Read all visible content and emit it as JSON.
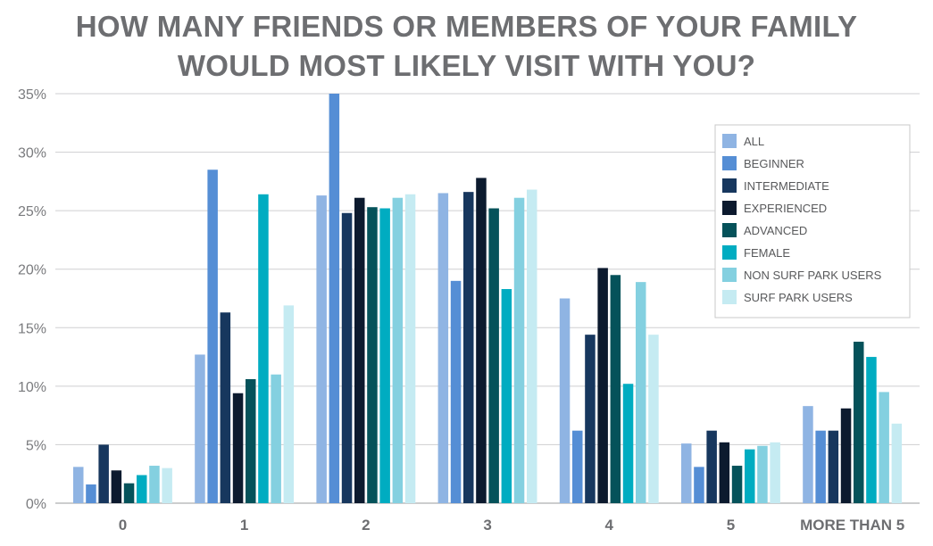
{
  "chart_data": {
    "type": "bar",
    "title": "HOW MANY FRIENDS OR MEMBERS OF YOUR FAMILY WOULD MOST LIKELY VISIT WITH YOU?",
    "title_lines": [
      "HOW MANY FRIENDS OR MEMBERS OF YOUR FAMILY",
      "WOULD MOST LIKELY VISIT WITH YOU?"
    ],
    "categories": [
      "0",
      "1",
      "2",
      "3",
      "4",
      "5",
      "MORE THAN 5"
    ],
    "ylim": [
      0,
      35
    ],
    "yticks": [
      0,
      5,
      10,
      15,
      20,
      25,
      30,
      35
    ],
    "ytick_labels": [
      "0%",
      "5%",
      "10%",
      "15%",
      "20%",
      "25%",
      "30%",
      "35%"
    ],
    "grid": true,
    "legend_position": "top-right",
    "series": [
      {
        "name": "ALL",
        "color": "#8fb4e3",
        "values": [
          3.1,
          12.7,
          26.3,
          26.5,
          17.5,
          5.1,
          8.3
        ]
      },
      {
        "name": "BEGINNER",
        "color": "#558ed5",
        "values": [
          1.6,
          28.5,
          35.0,
          19.0,
          6.2,
          3.1,
          6.2
        ]
      },
      {
        "name": "INTERMEDIATE",
        "color": "#17375e",
        "values": [
          5.0,
          16.3,
          24.8,
          26.6,
          14.4,
          6.2,
          6.2
        ]
      },
      {
        "name": "EXPERIENCED",
        "color": "#0c1a2e",
        "values": [
          2.8,
          9.4,
          26.1,
          27.8,
          20.1,
          5.2,
          8.1
        ]
      },
      {
        "name": "ADVANCED",
        "color": "#05525a",
        "values": [
          1.7,
          10.6,
          25.3,
          25.2,
          19.5,
          3.2,
          13.8
        ]
      },
      {
        "name": "FEMALE",
        "color": "#00acc1",
        "values": [
          2.4,
          26.4,
          25.2,
          18.3,
          10.2,
          4.6,
          12.5
        ]
      },
      {
        "name": "NON SURF PARK USERS",
        "color": "#84d0e0",
        "values": [
          3.2,
          11.0,
          26.1,
          26.1,
          18.9,
          4.9,
          9.5
        ]
      },
      {
        "name": "SURF PARK USERS",
        "color": "#c5ebf2",
        "values": [
          3.0,
          16.9,
          26.4,
          26.8,
          14.4,
          5.2,
          6.8
        ]
      }
    ]
  },
  "colors": {
    "grid": "#cfcfd1",
    "axis": "#9a9b9e",
    "legend_border": "#c8c8c8"
  }
}
